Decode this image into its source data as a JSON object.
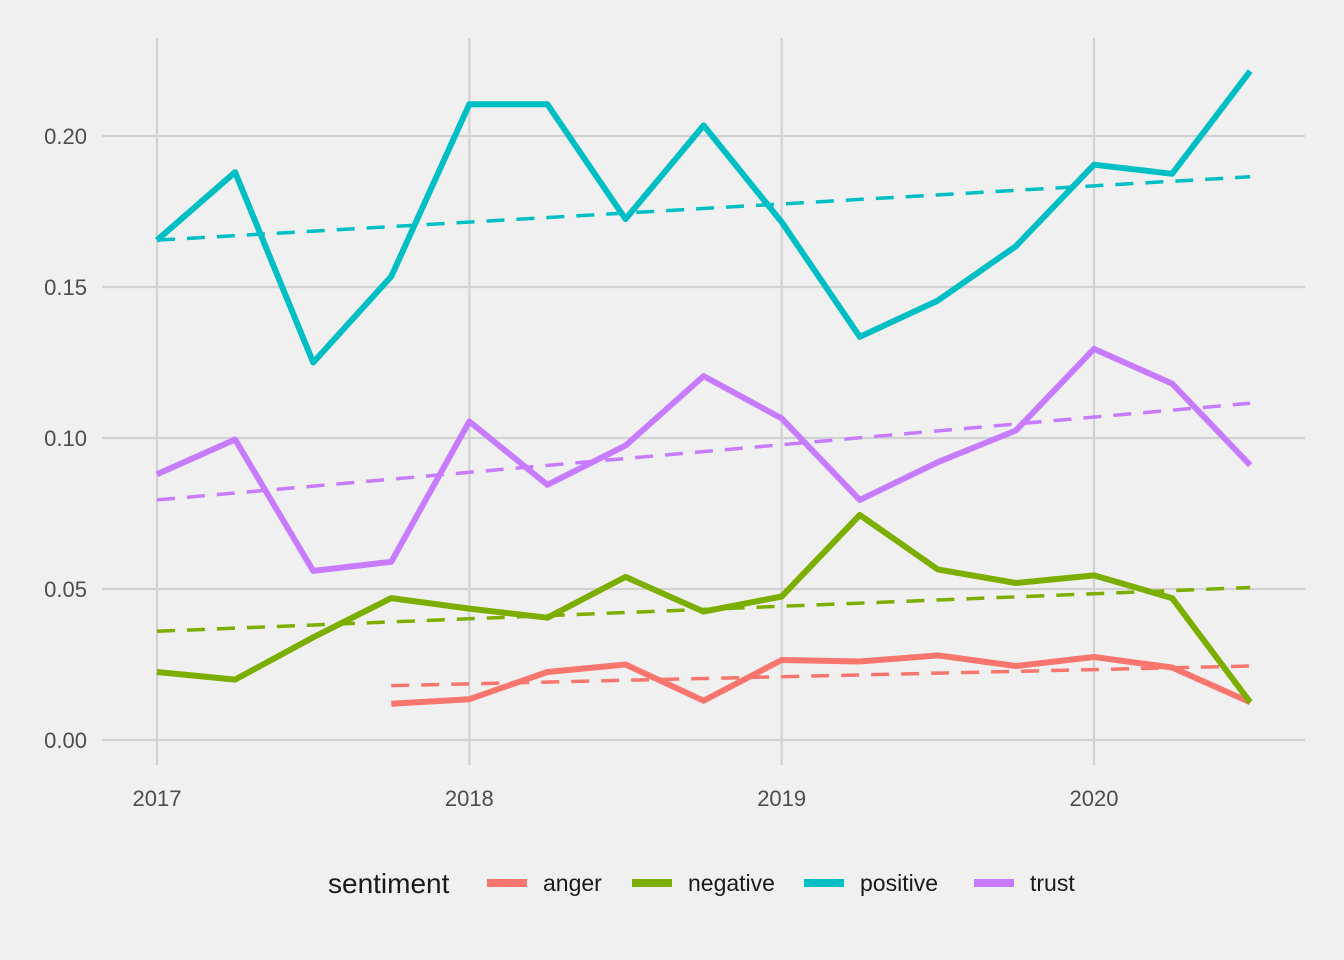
{
  "chart_data": {
    "type": "line",
    "title": "",
    "xlabel": "",
    "ylabel": "",
    "xlim": [
      2016.8,
      2020.7
    ],
    "ylim": [
      -0.005,
      0.228
    ],
    "x_ticks": [
      2017,
      2018,
      2019,
      2020
    ],
    "x_tick_labels": [
      "2017",
      "2018",
      "2019",
      "2020"
    ],
    "y_ticks": [
      0.0,
      0.05,
      0.1,
      0.15,
      0.2
    ],
    "y_tick_labels": [
      "0.00",
      "0.05",
      "0.10",
      "0.15",
      "0.20"
    ],
    "grid": true,
    "legend": {
      "title": "sentiment",
      "position": "bottom",
      "entries": [
        "anger",
        "negative",
        "positive",
        "trust"
      ]
    },
    "series": [
      {
        "name": "anger",
        "color": "#F8766D",
        "x": [
          2017.75,
          2018.0,
          2018.25,
          2018.5,
          2018.75,
          2019.0,
          2019.25,
          2019.5,
          2019.75,
          2020.0,
          2020.25,
          2020.5
        ],
        "values": [
          0.012,
          0.0135,
          0.0225,
          0.025,
          0.013,
          0.0265,
          0.026,
          0.028,
          0.0245,
          0.0275,
          0.024,
          0.0125
        ],
        "trend": [
          [
            2017.75,
            0.018
          ],
          [
            2020.5,
            0.0245
          ]
        ]
      },
      {
        "name": "negative",
        "color": "#7CAE00",
        "x": [
          2017.0,
          2017.25,
          2017.5,
          2017.75,
          2018.0,
          2018.25,
          2018.5,
          2018.75,
          2019.0,
          2019.25,
          2019.5,
          2019.75,
          2020.0,
          2020.25,
          2020.5
        ],
        "values": [
          0.0225,
          0.02,
          0.034,
          0.047,
          0.0435,
          0.0405,
          0.054,
          0.0425,
          0.0475,
          0.0745,
          0.0565,
          0.052,
          0.0545,
          0.047,
          0.0125
        ],
        "trend": [
          [
            2017.0,
            0.036
          ],
          [
            2020.5,
            0.0505
          ]
        ]
      },
      {
        "name": "positive",
        "color": "#00BFC4",
        "x": [
          2017.0,
          2017.25,
          2017.5,
          2017.75,
          2018.0,
          2018.25,
          2018.5,
          2018.75,
          2019.0,
          2019.25,
          2019.5,
          2019.75,
          2020.0,
          2020.25,
          2020.5
        ],
        "values": [
          0.1655,
          0.188,
          0.125,
          0.1535,
          0.2105,
          0.2105,
          0.1725,
          0.2035,
          0.1715,
          0.1335,
          0.1455,
          0.1635,
          0.1905,
          0.1875,
          0.2215
        ],
        "trend": [
          [
            2017.0,
            0.1655
          ],
          [
            2020.5,
            0.1865
          ]
        ]
      },
      {
        "name": "trust",
        "color": "#C77CFF",
        "x": [
          2017.0,
          2017.25,
          2017.5,
          2017.75,
          2018.0,
          2018.25,
          2018.5,
          2018.75,
          2019.0,
          2019.25,
          2019.5,
          2019.75,
          2020.0,
          2020.25,
          2020.5
        ],
        "values": [
          0.088,
          0.0995,
          0.056,
          0.059,
          0.1055,
          0.0845,
          0.0975,
          0.1205,
          0.1065,
          0.0795,
          0.092,
          0.1025,
          0.1295,
          0.118,
          0.091
        ],
        "trend": [
          [
            2017.0,
            0.0795
          ],
          [
            2020.5,
            0.1115
          ]
        ]
      }
    ]
  }
}
